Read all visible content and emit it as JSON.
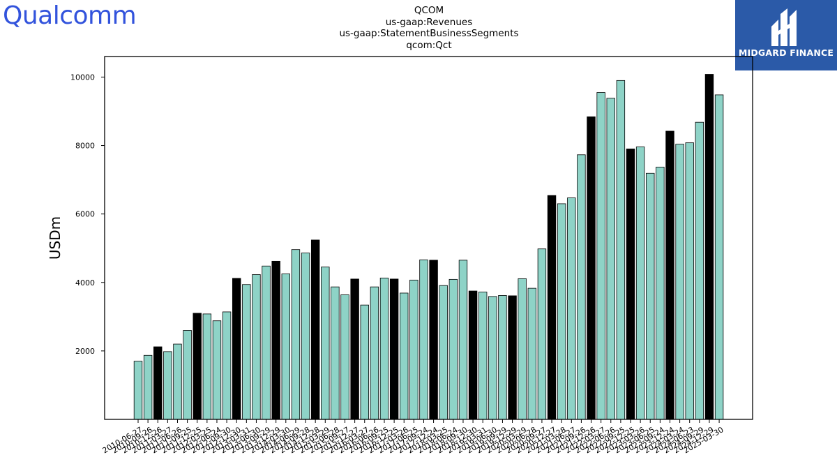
{
  "branding": {
    "left_logo": "Qualcomm",
    "right_logo": "MIDGARD FINANCE"
  },
  "colors": {
    "bar_normal": "#8ed3c7",
    "bar_highlight": "#000000",
    "logo_blue": "#3253dc",
    "badge_bg": "#2b5aa8"
  },
  "chart_data": {
    "type": "bar",
    "title_lines": [
      "QCOM",
      "us-gaap:Revenues",
      "us-gaap:StatementBusinessSegments",
      "qcom:Qct"
    ],
    "ylabel": "USDm",
    "xlabel": "",
    "ylim": [
      0,
      10600
    ],
    "yticks": [
      2000,
      4000,
      6000,
      8000,
      10000
    ],
    "grid": false,
    "categories": [
      "2010-06-27",
      "2010-09-26",
      "2010-12-26",
      "2011-03-27",
      "2011-06-26",
      "2011-09-25",
      "2011-12-25",
      "2012-03-25",
      "2012-06-24",
      "2012-09-30",
      "2012-12-30",
      "2013-03-31",
      "2013-06-30",
      "2013-09-29",
      "2013-12-29",
      "2014-03-30",
      "2014-06-29",
      "2014-09-28",
      "2014-12-28",
      "2015-03-29",
      "2015-06-28",
      "2015-09-27",
      "2015-12-27",
      "2016-03-27",
      "2016-06-26",
      "2016-09-25",
      "2016-12-25",
      "2017-03-26",
      "2017-06-25",
      "2017-09-24",
      "2017-12-24",
      "2018-03-25",
      "2018-06-24",
      "2018-09-30",
      "2018-12-30",
      "2019-03-31",
      "2019-06-30",
      "2019-09-29",
      "2019-12-29",
      "2020-03-29",
      "2020-06-28",
      "2020-09-27",
      "2020-12-27",
      "2021-03-28",
      "2021-06-27",
      "2021-09-26",
      "2021-12-26",
      "2022-03-27",
      "2022-06-26",
      "2022-09-25",
      "2022-12-25",
      "2023-03-26",
      "2023-06-25",
      "2023-09-24",
      "2023-12-24",
      "2024-03-24",
      "2024-06-23",
      "2024-09-29",
      "2024-12-29",
      "2025-03-30"
    ],
    "values": [
      1700,
      1870,
      2120,
      1980,
      2200,
      2600,
      3100,
      3080,
      2880,
      3140,
      4120,
      3940,
      4230,
      4480,
      4620,
      4250,
      4960,
      4860,
      5240,
      4450,
      3870,
      3640,
      4100,
      3340,
      3870,
      4130,
      4100,
      3690,
      4070,
      4660,
      4650,
      3910,
      4090,
      4650,
      3750,
      3720,
      3590,
      3620,
      3610,
      4110,
      3830,
      4980,
      6540,
      6300,
      6470,
      7730,
      8840,
      9550,
      9380,
      9900,
      7900,
      7960,
      7190,
      7370,
      8420,
      8040,
      8080,
      8680,
      10080,
      9480
    ],
    "highlighted": [
      false,
      false,
      true,
      false,
      false,
      false,
      true,
      false,
      false,
      false,
      true,
      false,
      false,
      false,
      true,
      false,
      false,
      false,
      true,
      false,
      false,
      false,
      true,
      false,
      false,
      false,
      true,
      false,
      false,
      false,
      true,
      false,
      false,
      false,
      true,
      false,
      false,
      false,
      true,
      false,
      false,
      false,
      true,
      false,
      false,
      false,
      true,
      false,
      false,
      false,
      true,
      false,
      false,
      false,
      true,
      false,
      false,
      false,
      true,
      false
    ]
  }
}
